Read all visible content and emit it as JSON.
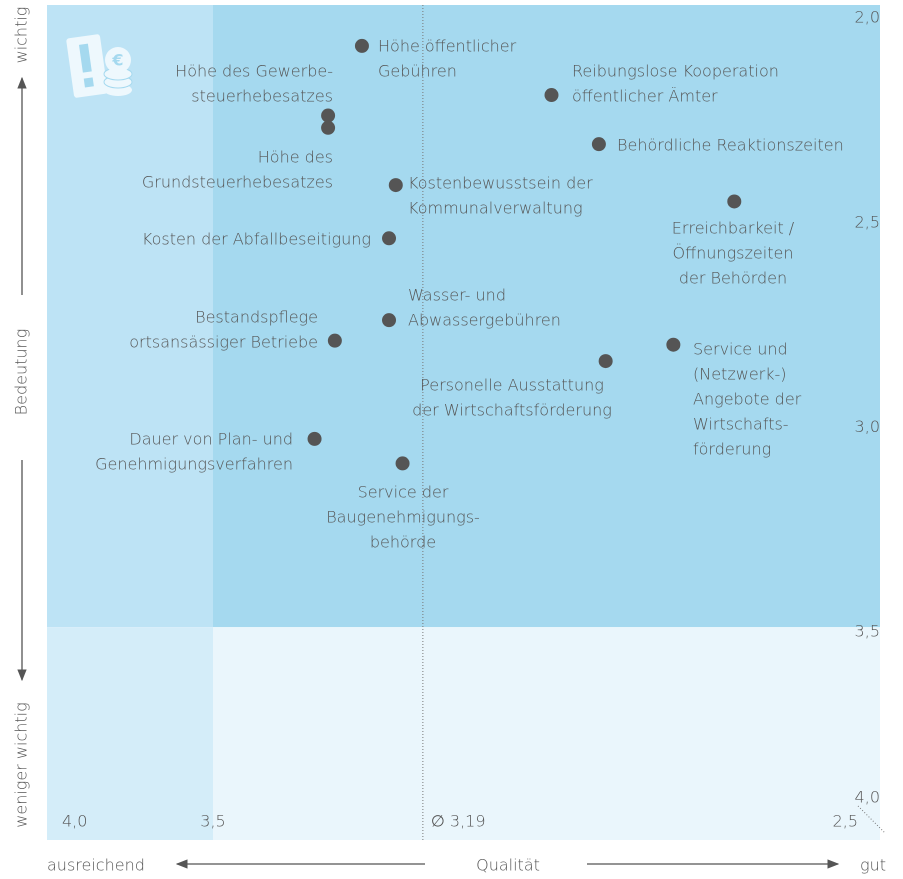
{
  "chart_data": {
    "type": "scatter",
    "x_label": "Qualität",
    "x_low_label": "ausreichend",
    "x_high_label": "gut",
    "y_label": "Bedeutung",
    "y_high_label": "wichtig",
    "y_low_label": "weniger wichtig",
    "xlim": [
      4.0,
      2.5
    ],
    "ylim": [
      1.98,
      4.02
    ],
    "xticks": [
      {
        "value": 4.0,
        "label": "4,0"
      },
      {
        "value": 3.5,
        "label": "3,5"
      },
      {
        "value": 2.5,
        "label": "2,5"
      }
    ],
    "yticks": [
      {
        "value": 2.0,
        "label": "2,0"
      },
      {
        "value": 2.5,
        "label": "2,5"
      },
      {
        "value": 3.0,
        "label": "3,0"
      },
      {
        "value": 3.5,
        "label": "3,5"
      },
      {
        "value": 4.0,
        "label": "4,0"
      }
    ],
    "average": {
      "value": 3.19,
      "label": "∅ 3,19"
    },
    "color": "#555555",
    "points": [
      {
        "label": [
          "Höhe öffentlicher",
          "Gebühren"
        ],
        "x": 3.28,
        "y": 2.08
      },
      {
        "label": [
          "Höhe des Gewerbe-",
          "steuerhebesatzes"
        ],
        "x": 3.33,
        "y": 2.25
      },
      {
        "label": [
          "Höhe des",
          "Grundsteuerhebesatzes"
        ],
        "x": 3.33,
        "y": 2.28
      },
      {
        "label": [
          "Reibungslose Kooperation",
          "öffentlicher Ämter"
        ],
        "x": 3.0,
        "y": 2.2
      },
      {
        "label": [
          "Behördliche Reaktionszeiten"
        ],
        "x": 2.93,
        "y": 2.32
      },
      {
        "label": [
          "Kostenbewusstsein der",
          "Kommunalverwaltung"
        ],
        "x": 3.23,
        "y": 2.42
      },
      {
        "label": [
          "Erreichbarkeit /",
          "Öffnungszeiten",
          "der Behörden"
        ],
        "x": 2.73,
        "y": 2.46
      },
      {
        "label": [
          "Kosten der Abfallbeseitigung"
        ],
        "x": 3.24,
        "y": 2.55
      },
      {
        "label": [
          "Wasser- und",
          "Abwassergebühren"
        ],
        "x": 3.24,
        "y": 2.75
      },
      {
        "label": [
          "Bestandspflege",
          "ortsansässiger Betriebe"
        ],
        "x": 3.32,
        "y": 2.8
      },
      {
        "label": [
          "Personelle Ausstattung",
          "der Wirtschaftsförderung"
        ],
        "x": 2.92,
        "y": 2.85
      },
      {
        "label": [
          "Service und",
          "(Netzwerk-)",
          "Angebote der",
          "Wirtschafts-",
          "förderung"
        ],
        "x": 2.82,
        "y": 2.81
      },
      {
        "label": [
          "Dauer von Plan- und",
          "Genehmigungsverfahren"
        ],
        "x": 3.35,
        "y": 3.04
      },
      {
        "label": [
          "Service der",
          "Baugenehmigungs-",
          "behörde"
        ],
        "x": 3.22,
        "y": 3.1
      }
    ]
  }
}
